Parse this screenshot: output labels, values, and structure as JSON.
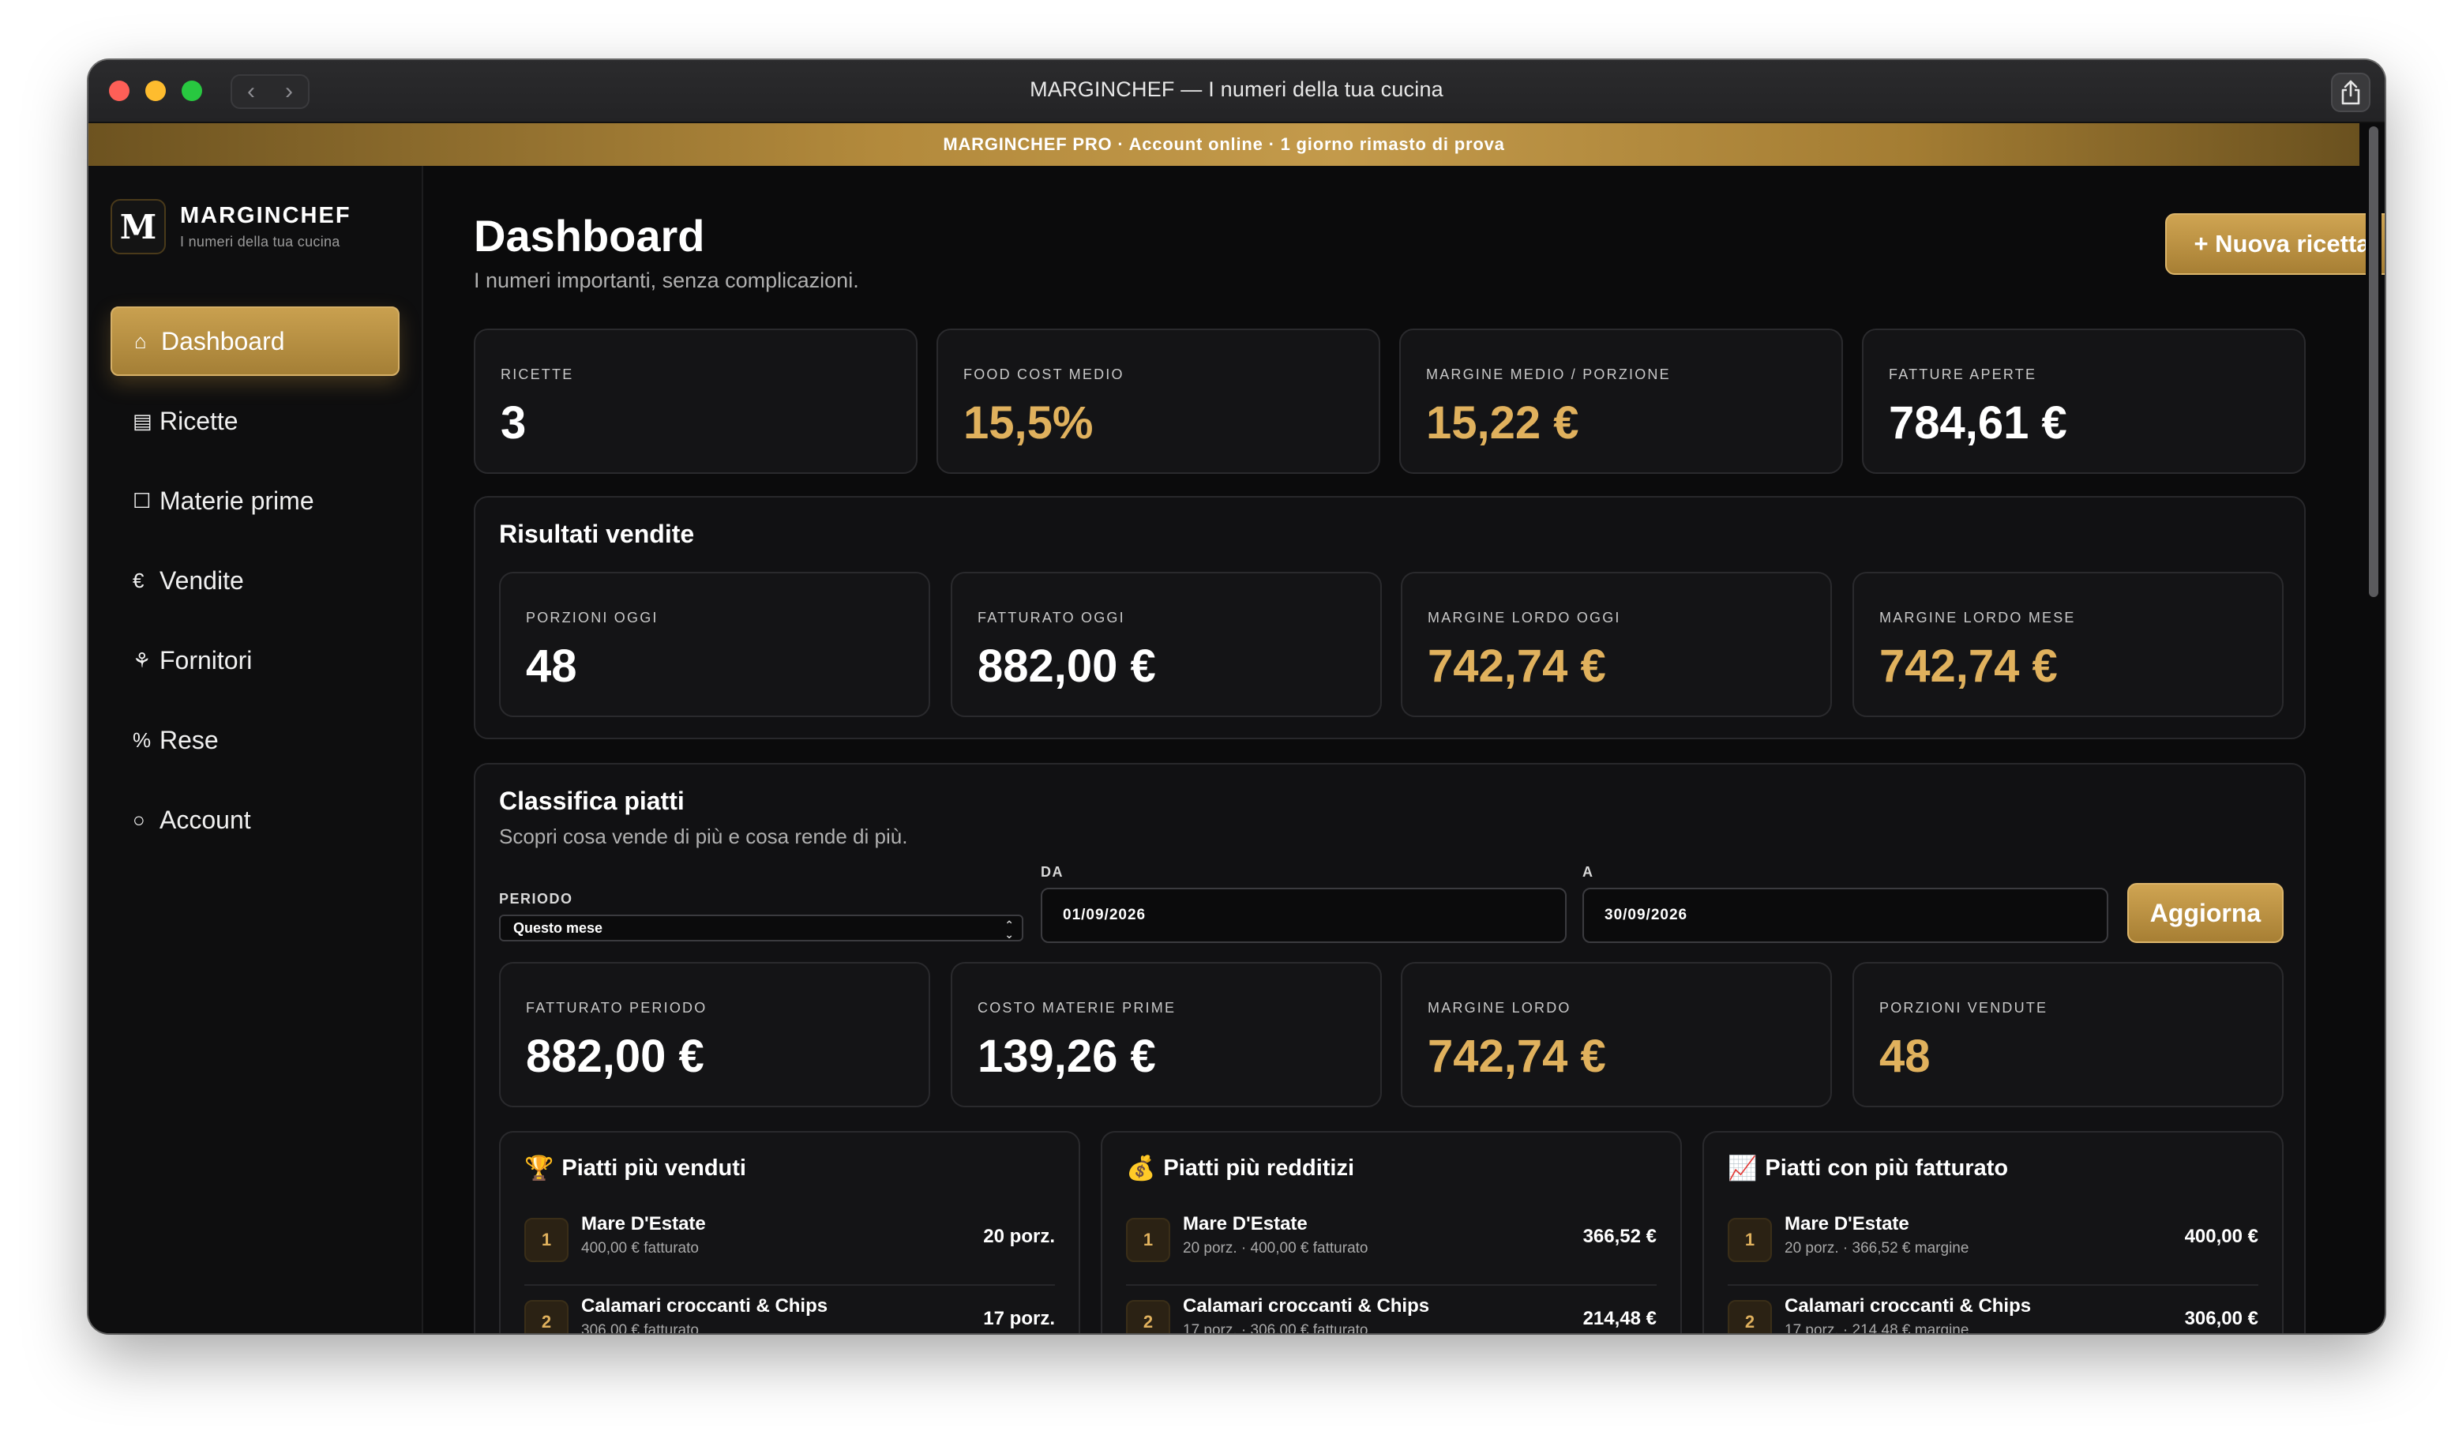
{
  "window": {
    "title": "MARGINCHEF — I numeri della tua cucina"
  },
  "banner": {
    "text": "MARGINCHEF PRO · Account online · 1 giorno rimasto di prova"
  },
  "brand": {
    "logo": "M",
    "name": "MARGINCHEF",
    "tagline": "I numeri della tua cucina"
  },
  "sidebar": {
    "items": [
      {
        "icon": "⌂",
        "label": "Dashboard",
        "active": true
      },
      {
        "icon": "▤",
        "label": "Ricette"
      },
      {
        "icon": "☐",
        "label": "Materie prime"
      },
      {
        "icon": "€",
        "label": "Vendite"
      },
      {
        "icon": "⚘",
        "label": "Fornitori"
      },
      {
        "icon": "%",
        "label": "Rese"
      },
      {
        "icon": "○",
        "label": "Account"
      }
    ]
  },
  "header": {
    "title": "Dashboard",
    "subtitle": "I numeri importanti, senza complicazioni.",
    "new_recipe_label": "+ Nuova ricetta"
  },
  "stats": [
    {
      "label": "RICETTE",
      "value": "3"
    },
    {
      "label": "FOOD COST MEDIO",
      "value": "15,5%"
    },
    {
      "label": "MARGINE MEDIO / PORZIONE",
      "value": "15,22 €"
    },
    {
      "label": "FATTURE APERTE",
      "value": "784,61 €"
    }
  ],
  "sales": {
    "title": "Risultati vendite",
    "stats": [
      {
        "label": "PORZIONI OGGI",
        "value": "48"
      },
      {
        "label": "FATTURATO OGGI",
        "value": "882,00 €"
      },
      {
        "label": "MARGINE LORDO OGGI",
        "value": "742,74 €"
      },
      {
        "label": "MARGINE LORDO MESE",
        "value": "742,74 €"
      }
    ]
  },
  "ranking": {
    "title": "Classifica piatti",
    "subtitle": "Scopri cosa vende di più e cosa rende di più.",
    "period_label": "PERIODO",
    "period_value": "Questo mese",
    "from_label": "DA",
    "from_value": "01/09/2026",
    "to_label": "A",
    "to_value": "30/09/2026",
    "refresh_label": "Aggiorna",
    "stats": [
      {
        "label": "FATTURATO PERIODO",
        "value": "882,00 €"
      },
      {
        "label": "COSTO MATERIE PRIME",
        "value": "139,26 €"
      },
      {
        "label": "MARGINE LORDO",
        "value": "742,74 €"
      },
      {
        "label": "PORZIONI VENDUTE",
        "value": "48"
      }
    ],
    "lists": [
      {
        "icon": "🏆",
        "title": "Piatti più venduti",
        "rows": [
          {
            "rank": "1",
            "name": "Mare D'Estate",
            "meta": "400,00 € fatturato",
            "value": "20 porz."
          },
          {
            "rank": "2",
            "name": "Calamari croccanti & Chips",
            "meta": "306,00 € fatturato",
            "value": "17 porz."
          }
        ]
      },
      {
        "icon": "💰",
        "title": "Piatti più redditizi",
        "rows": [
          {
            "rank": "1",
            "name": "Mare D'Estate",
            "meta": "20 porz. · 400,00 € fatturato",
            "value": "366,52 €"
          },
          {
            "rank": "2",
            "name": "Calamari croccanti & Chips",
            "meta": "17 porz. · 306,00 € fatturato",
            "value": "214,48 €"
          }
        ]
      },
      {
        "icon": "📈",
        "title": "Piatti con più fatturato",
        "rows": [
          {
            "rank": "1",
            "name": "Mare D'Estate",
            "meta": "20 porz. · 366,52 € margine",
            "value": "400,00 €"
          },
          {
            "rank": "2",
            "name": "Calamari croccanti & Chips",
            "meta": "17 porz. · 214,48 € margine",
            "value": "306,00 €"
          }
        ]
      }
    ]
  },
  "colors": {
    "accent": "#c9a04f",
    "gold_text": "#e0b15d",
    "background": "#0b0b0c"
  }
}
